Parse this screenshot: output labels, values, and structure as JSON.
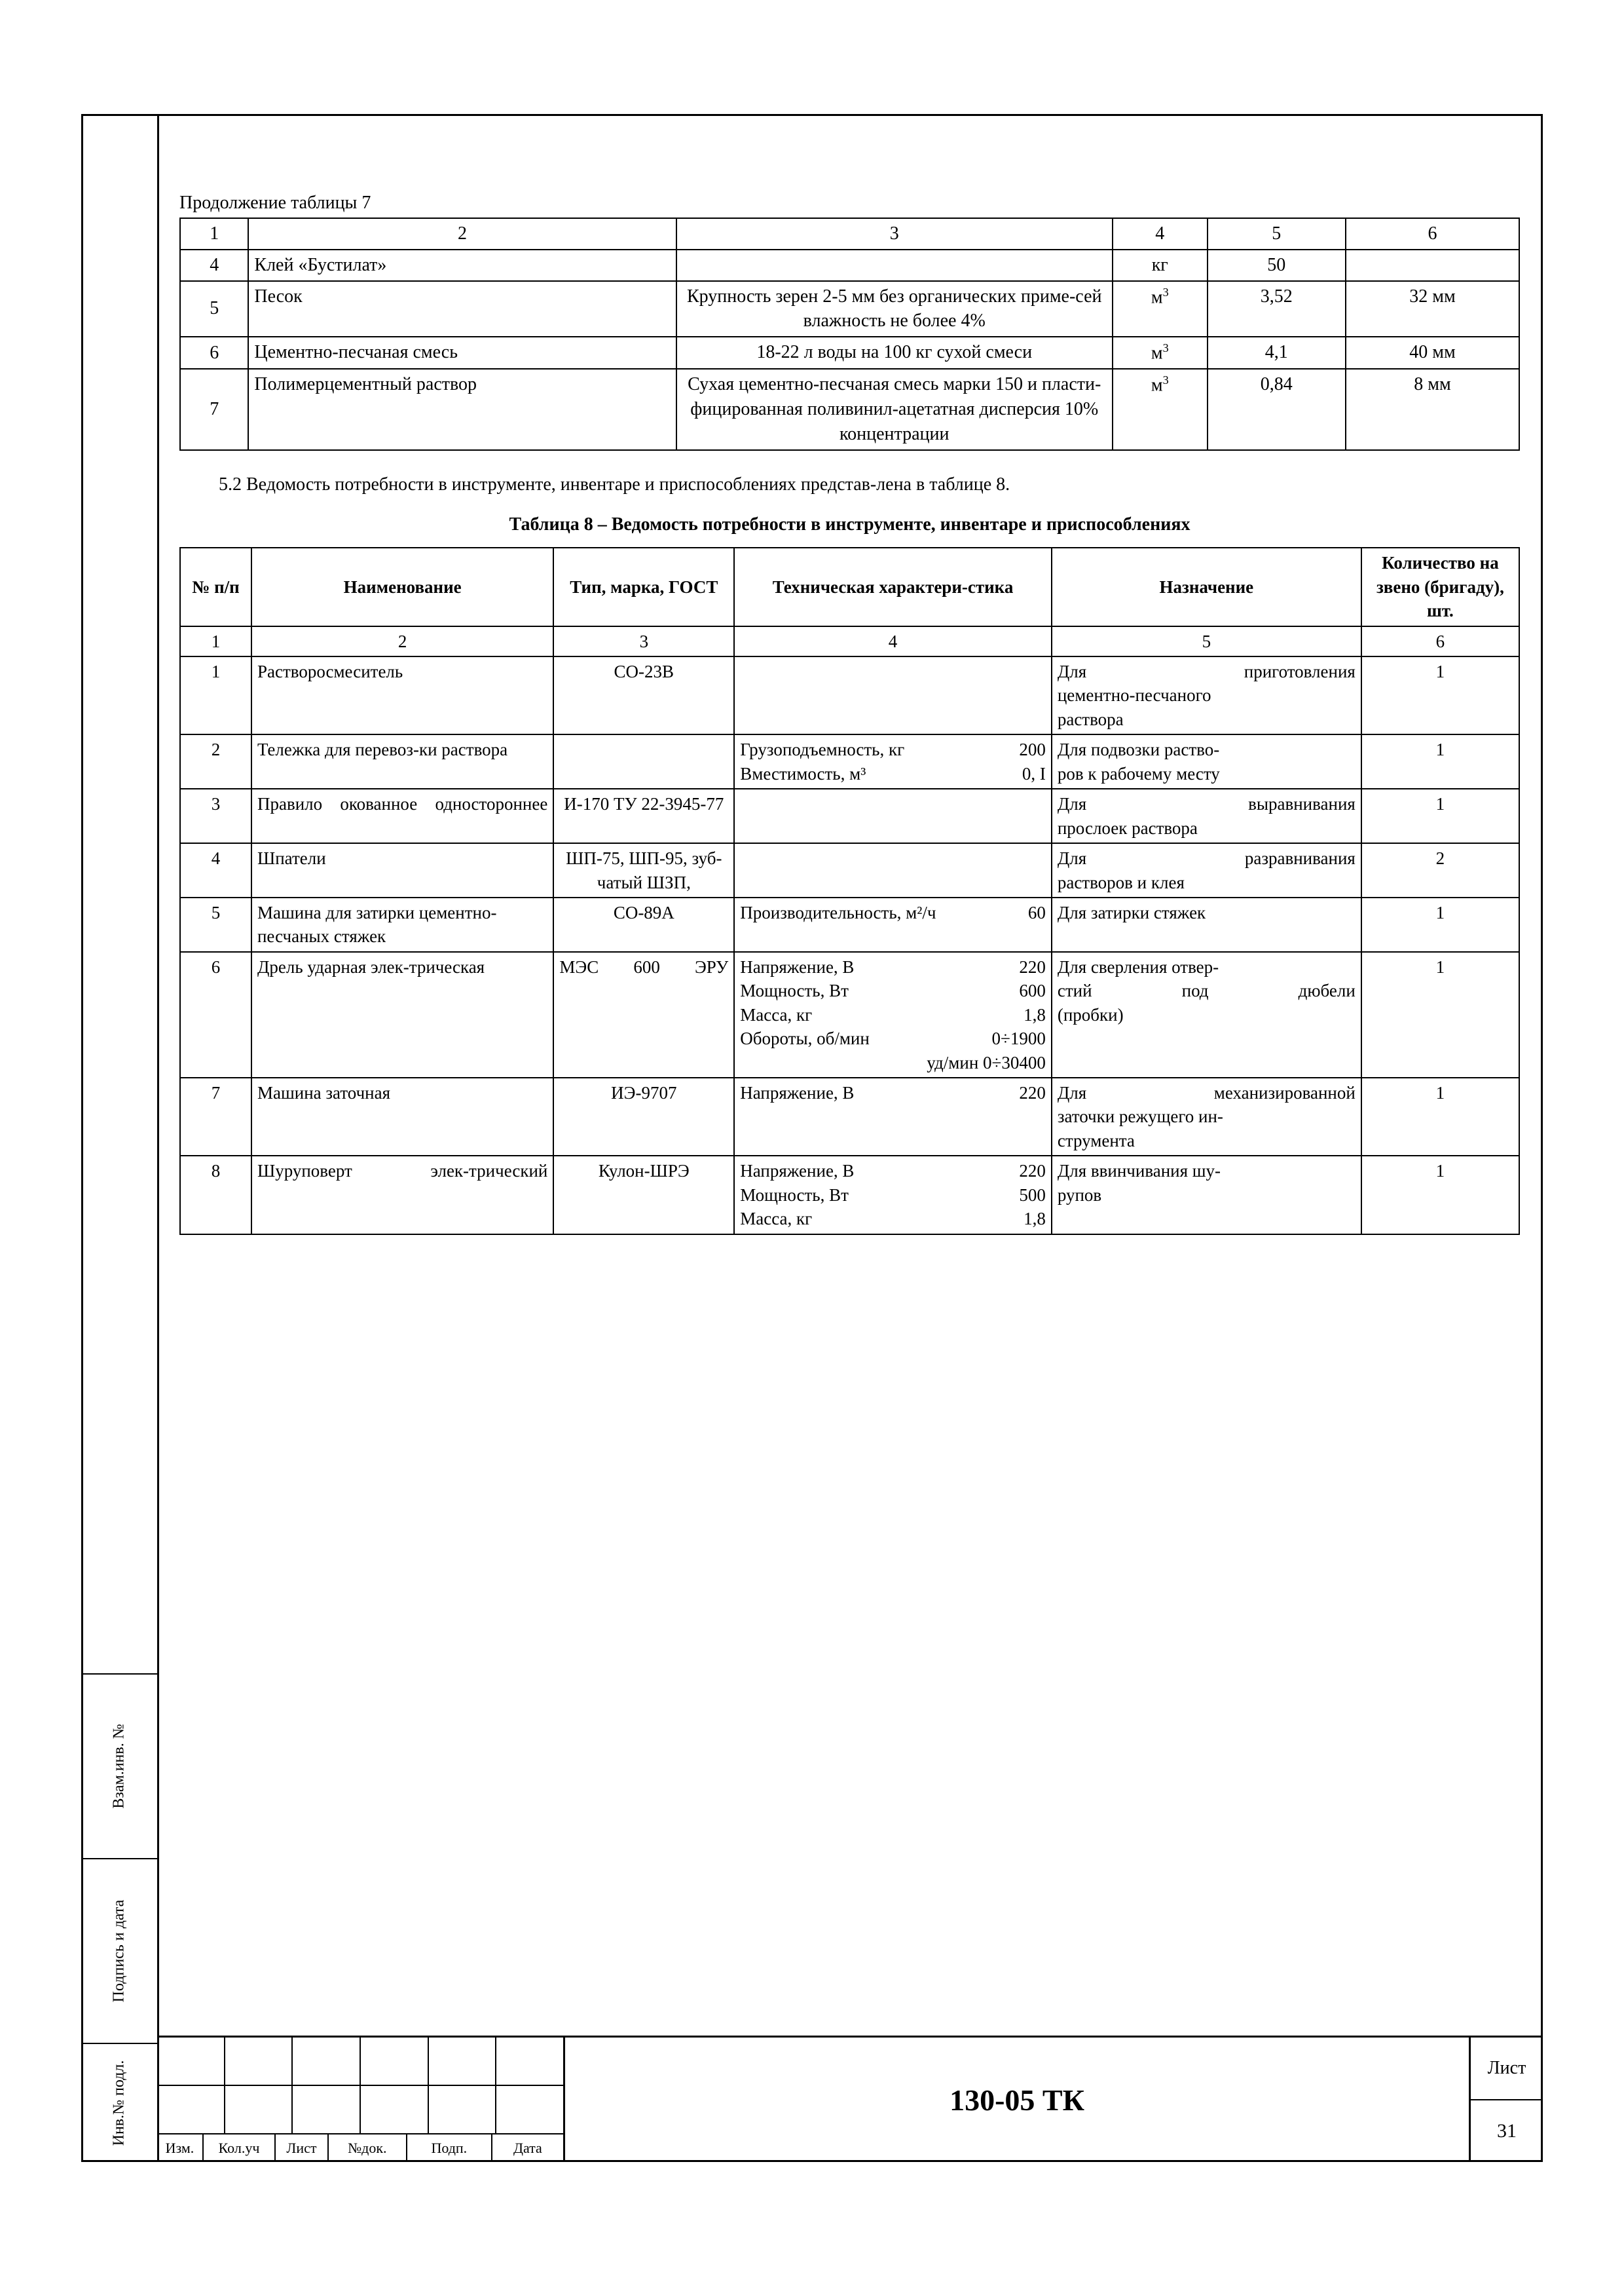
{
  "table7": {
    "caption": "Продолжение таблицы 7",
    "header": [
      "1",
      "2",
      "3",
      "4",
      "5",
      "6"
    ],
    "rows": [
      {
        "n": "4",
        "name": "Клей «Бустилат»",
        "char": "",
        "unit": "кг",
        "qty": "50",
        "thk": ""
      },
      {
        "n": "5",
        "name": "Песок",
        "char": "Крупность зерен 2-5 мм без органических приме-сей влажность не более 4%",
        "unit_html": "м<sup>3</sup>",
        "qty": "3,52",
        "thk": "32 мм"
      },
      {
        "n": "6",
        "name": "Цементно-песчаная смесь",
        "char": "18-22 л воды на 100 кг сухой смеси",
        "unit_html": "м<sup>3</sup>",
        "qty": "4,1",
        "thk": "40 мм"
      },
      {
        "n": "7",
        "name": "Полимерцементный раствор",
        "char": "Сухая цементно-песчаная смесь марки 150 и пласти-фицированная поливинил-ацетатная дисперсия 10% концентрации",
        "unit_html": "м<sup>3</sup>",
        "qty": "0,84",
        "thk": "8 мм"
      }
    ]
  },
  "paragraph_5_2": "5.2 Ведомость потребности в инструменте, инвентаре и приспособлениях представ-лена в таблице 8.",
  "table8": {
    "title": "Таблица 8 – Ведомость потребности в инструменте, инвентаре и приспособлениях",
    "header": {
      "n": "№ п/п",
      "name": "Наименование",
      "type": "Тип, марка, ГОСТ",
      "tech": "Техническая характери-стика",
      "purp": "Назначение",
      "qty": "Количество на звено (бригаду), шт."
    },
    "subheader": [
      "1",
      "2",
      "3",
      "4",
      "5",
      "6"
    ],
    "rows": [
      {
        "n": "1",
        "name": "Растворосмеситель",
        "type": "СО-23В",
        "tech": [],
        "purp_lines_just": [
          "Для приготовления"
        ],
        "purp_lines": [
          "цементно-песчаного",
          "раствора"
        ],
        "qty": "1"
      },
      {
        "n": "2",
        "name": "Тележка для перевоз-ки раствора",
        "type": "",
        "tech": [
          [
            "Грузоподъемность, кг",
            "200"
          ],
          [
            "Вместимость, м³",
            "0, I"
          ]
        ],
        "purp_lines": [
          "Для подвозки раство-",
          "ров к рабочему месту"
        ],
        "qty": "1"
      },
      {
        "n": "3",
        "name": "Правило окованное одностороннее",
        "name_just": true,
        "type": "И-170 ТУ 22-3945-77",
        "tech": [],
        "purp_lines_just": [
          "Для выравнивания"
        ],
        "purp_lines": [
          "прослоек раствора"
        ],
        "qty": "1"
      },
      {
        "n": "4",
        "name": "Шпатели",
        "type": "ШП-75, ШП-95, зуб-чатый ШЗП,",
        "tech": [],
        "purp_lines_just": [
          "Для разравнивания"
        ],
        "purp_lines": [
          "растворов и клея"
        ],
        "qty": "2"
      },
      {
        "n": "5",
        "name": "Машина для затирки цементно-песчаных стяжек",
        "type": "СО-89А",
        "tech": [
          [
            "Производительность, м²/ч",
            "60"
          ]
        ],
        "purp_lines": [
          "Для затирки стяжек"
        ],
        "qty": "1"
      },
      {
        "n": "6",
        "name": "Дрель ударная элек-трическая",
        "type": "МЭС 600 ЭРУ",
        "type_just": true,
        "tech": [
          [
            "Напряжение, В",
            "220"
          ],
          [
            "Мощность, Вт",
            "600"
          ],
          [
            "Масса, кг",
            "1,8"
          ],
          [
            "Обороты, об/мин",
            "0÷1900"
          ],
          [
            "уд/мин",
            "0÷30400"
          ]
        ],
        "tech_last_right": true,
        "purp_lines": [
          "Для сверления отвер-"
        ],
        "purp_lines_just2": [
          "стий под дюбели"
        ],
        "purp_lines3": [
          "(пробки)"
        ],
        "qty": "1"
      },
      {
        "n": "7",
        "name": "Машина заточная",
        "type": "ИЭ-9707",
        "tech": [
          [
            "Напряжение, В",
            "220"
          ]
        ],
        "purp_lines_just": [
          "Для механизированной"
        ],
        "purp_lines": [
          "заточки режущего ин-",
          "струмента"
        ],
        "qty": "1"
      },
      {
        "n": "8",
        "name": "Шуруповерт элек-трический",
        "name_just": true,
        "type": "Кулон-ШРЭ",
        "tech": [
          [
            "Напряжение, В",
            "220"
          ],
          [
            "Мощность, Вт",
            "500"
          ],
          [
            "Масса, кг",
            "1,8"
          ]
        ],
        "purp_lines": [
          "Для ввинчивания шу-",
          "рупов"
        ],
        "qty": "1"
      }
    ]
  },
  "sidebar": {
    "inv": "Инв.№ подл.",
    "sign": "Подпись и дата",
    "vzam": "Взам.инв. №"
  },
  "stamp": {
    "labels": [
      "Изм.",
      "Кол.уч",
      "Лист",
      "№док.",
      "Подп.",
      "Дата"
    ],
    "doc": "130-05 ТК",
    "list_label": "Лист",
    "list_num": "31"
  }
}
